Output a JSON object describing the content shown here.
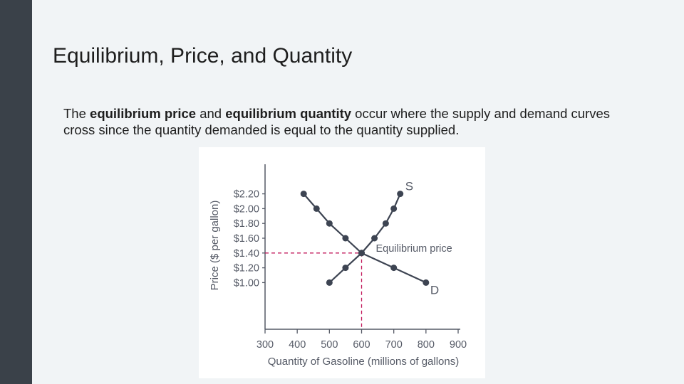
{
  "slide": {
    "title": "Equilibrium, Price, and Quantity",
    "body": {
      "part1": "The ",
      "bold1": "equilibrium price",
      "part2": " and ",
      "bold2": "equilibrium quantity",
      "part3": " occur where the supply and demand curves cross since the quantity demanded is equal to the quantity supplied."
    }
  },
  "colors": {
    "sidebar": "#3a4149",
    "background": "#f1f4f6",
    "curve": "#3d4452",
    "equilibrium_guide": "#c2185b",
    "axis": "#555a66"
  },
  "chart_data": {
    "type": "line",
    "xlabel": "Quantity of Gasoline (millions of gallons)",
    "ylabel": "Price ($ per gallon)",
    "x_ticks": [
      300,
      400,
      500,
      600,
      700,
      800,
      900
    ],
    "x_tick_labels": [
      "300",
      "400",
      "500",
      "600",
      "700",
      "800",
      "900"
    ],
    "y_ticks": [
      1.0,
      1.2,
      1.4,
      1.6,
      1.8,
      2.0,
      2.2
    ],
    "y_tick_labels": [
      "$1.00",
      "$1.20",
      "$1.40",
      "$1.60",
      "$1.80",
      "$2.00",
      "$2.20"
    ],
    "xlim": [
      300,
      900
    ],
    "ylim": [
      0.6,
      2.6
    ],
    "series": [
      {
        "name": "S",
        "points": [
          [
            500,
            1.0
          ],
          [
            550,
            1.2
          ],
          [
            600,
            1.4
          ],
          [
            640,
            1.6
          ],
          [
            675,
            1.8
          ],
          [
            700,
            2.0
          ],
          [
            720,
            2.2
          ]
        ]
      },
      {
        "name": "D",
        "points": [
          [
            420,
            2.2
          ],
          [
            460,
            2.0
          ],
          [
            500,
            1.8
          ],
          [
            550,
            1.6
          ],
          [
            600,
            1.4
          ],
          [
            700,
            1.2
          ],
          [
            800,
            1.0
          ]
        ]
      }
    ],
    "equilibrium": {
      "x": 600,
      "y": 1.4,
      "label": "Equilibrium price"
    },
    "grid": false
  }
}
